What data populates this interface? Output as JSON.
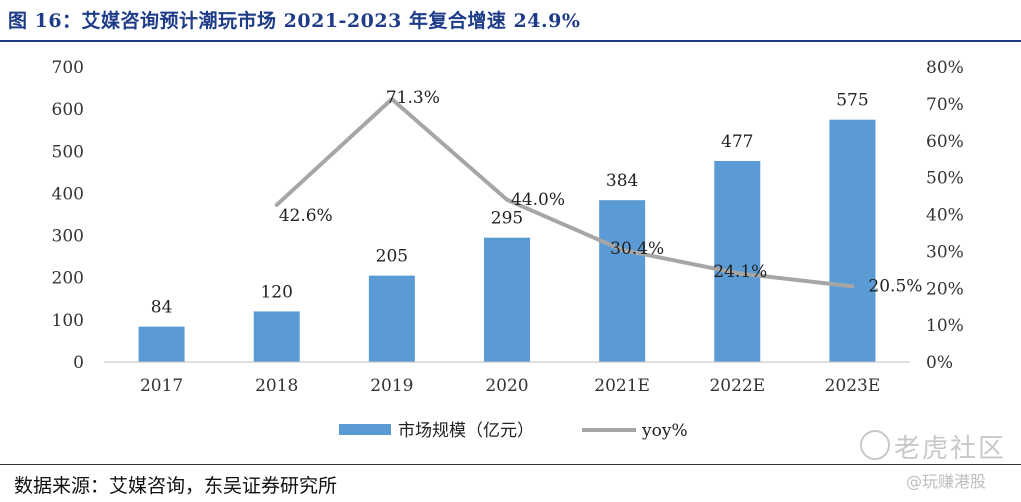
{
  "figure": {
    "title": "图 16：艾媒咨询预计潮玩市场 2021-2023 年复合增速 24.9%",
    "source": "数据来源：艾媒咨询，东吴证券研究所"
  },
  "watermark": {
    "brand": "老虎社区",
    "sub": "@玩赚港股"
  },
  "chart_data": {
    "type": "bar",
    "categories": [
      "2017",
      "2018",
      "2019",
      "2020",
      "2021E",
      "2022E",
      "2023E"
    ],
    "series": [
      {
        "name": "市场规模（亿元）",
        "type": "bar",
        "axis": "left",
        "color": "#5b9bd5",
        "values": [
          84,
          120,
          205,
          295,
          384,
          477,
          575
        ],
        "labels": [
          "84",
          "120",
          "205",
          "295",
          "384",
          "477",
          "575"
        ]
      },
      {
        "name": "yoy%",
        "type": "line",
        "axis": "right",
        "color": "#a6a6a6",
        "values": [
          null,
          42.6,
          71.3,
          44.0,
          30.4,
          24.1,
          20.5
        ],
        "labels": [
          "",
          "42.6%",
          "71.3%",
          "44.0%",
          "30.4%",
          "24.1%",
          "20.5%"
        ]
      }
    ],
    "y_left": {
      "min": 0,
      "max": 700,
      "step": 100,
      "ticks": [
        "0",
        "100",
        "200",
        "300",
        "400",
        "500",
        "600",
        "700"
      ]
    },
    "y_right": {
      "min": 0,
      "max": 80,
      "step": 10,
      "ticks": [
        "0%",
        "10%",
        "20%",
        "30%",
        "40%",
        "50%",
        "60%",
        "70%",
        "80%"
      ]
    },
    "grid": false,
    "legend_position": "bottom"
  }
}
